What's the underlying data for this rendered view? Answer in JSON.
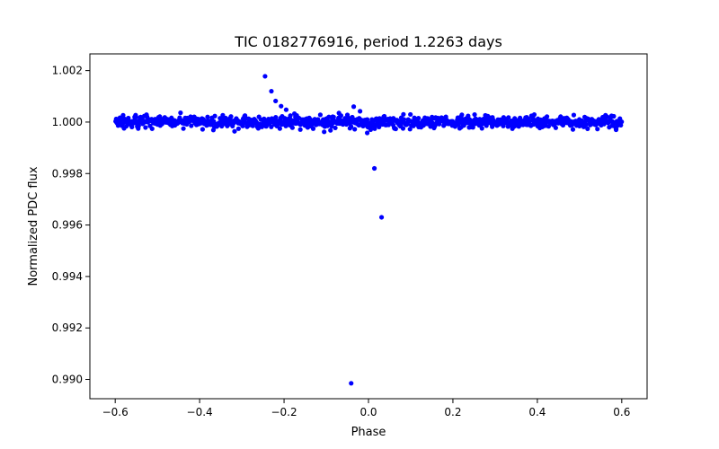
{
  "chart_data": {
    "type": "scatter",
    "title": "TIC 0182776916, period 1.2263 days",
    "xlabel": "Phase",
    "ylabel": "Normalized PDC flux",
    "xlim": [
      -0.66,
      0.66
    ],
    "ylim": [
      0.98925,
      1.00265
    ],
    "xticks": [
      -0.6,
      -0.4,
      -0.2,
      0.0,
      0.2,
      0.4,
      0.6
    ],
    "xtick_labels": [
      "−0.6",
      "−0.4",
      "−0.2",
      "0.0",
      "0.2",
      "0.4",
      "0.6"
    ],
    "yticks": [
      0.99,
      0.992,
      0.994,
      0.996,
      0.998,
      1.0,
      1.002
    ],
    "ytick_labels": [
      "0.990",
      "0.992",
      "0.994",
      "0.996",
      "0.998",
      "1.000",
      "1.002"
    ],
    "grid": false,
    "marker_color": "#0000ff",
    "baseline": {
      "name": "out-of-transit",
      "x_range": [
        -0.6,
        0.6
      ],
      "y_center": 1.0,
      "y_scatter": 0.00012,
      "count": 900
    },
    "points": [
      {
        "x": -0.245,
        "y": 1.00178
      },
      {
        "x": -0.23,
        "y": 1.0012
      },
      {
        "x": -0.22,
        "y": 1.00082
      },
      {
        "x": -0.207,
        "y": 1.00062
      },
      {
        "x": -0.195,
        "y": 1.00048
      },
      {
        "x": -0.185,
        "y": 1.00025
      },
      {
        "x": -0.17,
        "y": 1.00018
      },
      {
        "x": -0.21,
        "y": 0.99975
      },
      {
        "x": -0.105,
        "y": 0.99962
      },
      {
        "x": -0.09,
        "y": 0.99968
      },
      {
        "x": -0.07,
        "y": 1.00035
      },
      {
        "x": -0.05,
        "y": 1.00028
      },
      {
        "x": -0.035,
        "y": 1.0006
      },
      {
        "x": -0.02,
        "y": 1.00042
      },
      {
        "x": -0.003,
        "y": 0.99958
      },
      {
        "x": 0.014,
        "y": 0.9982
      },
      {
        "x": 0.031,
        "y": 0.9963
      },
      {
        "x": -0.041,
        "y": 0.98985
      }
    ]
  }
}
